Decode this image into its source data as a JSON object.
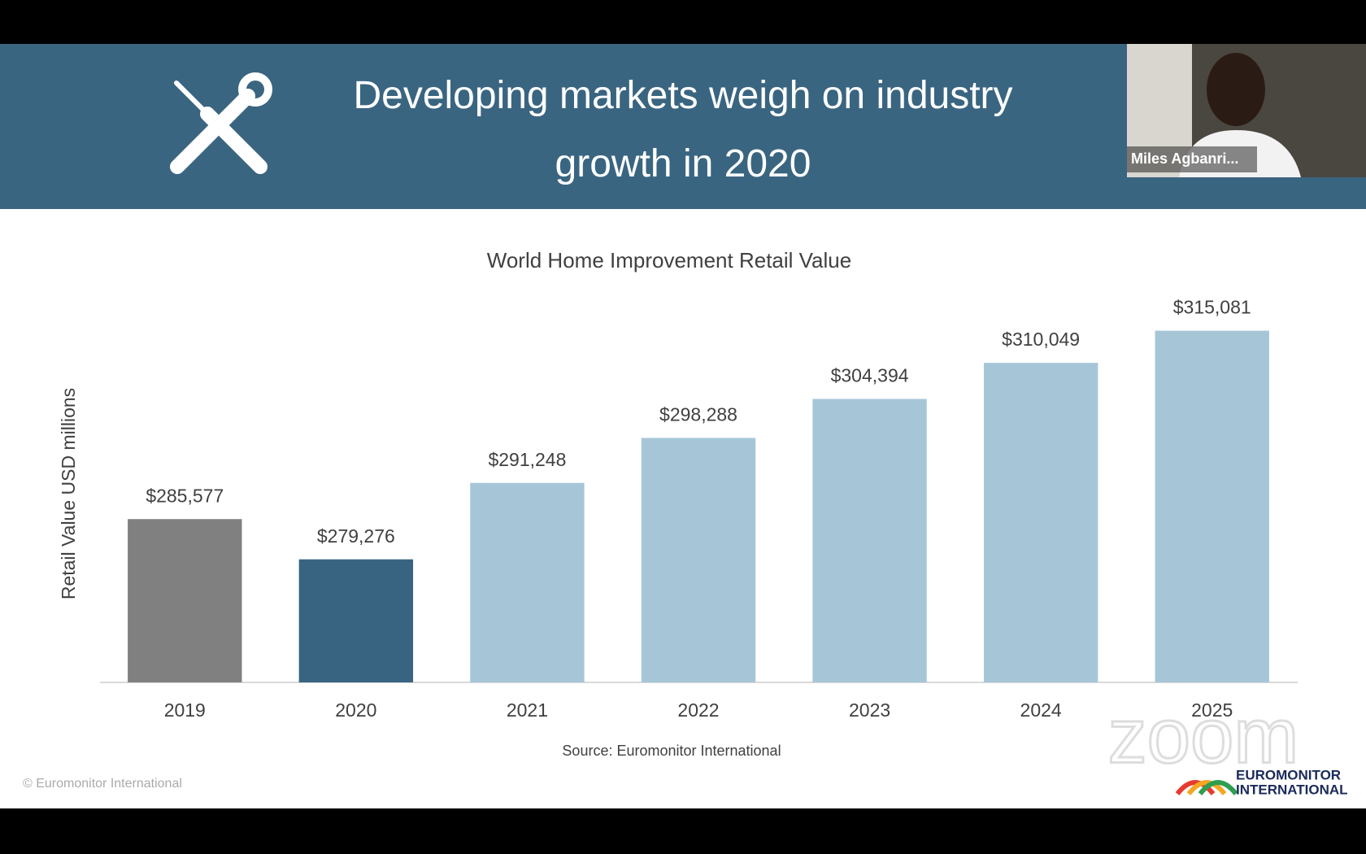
{
  "slide": {
    "title": "Developing markets weigh on industry growth in 2020",
    "copyright": "© Euromonitor International",
    "logo": [
      "EUROMONITOR",
      "INTERNATIONAL"
    ]
  },
  "video": {
    "participant": "Miles Agbanri..."
  },
  "watermark": "zoom",
  "chart_data": {
    "type": "bar",
    "title": "World Home Improvement Retail Value",
    "y_label": "Retail Value USD millions",
    "source": "Source: Euromonitor International",
    "categories": [
      "2019",
      "2020",
      "2021",
      "2022",
      "2023",
      "2024",
      "2025"
    ],
    "values": [
      285577,
      279276,
      291248,
      298288,
      304394,
      310049,
      315081
    ],
    "value_labels": [
      "$285,577",
      "$279,276",
      "$291,248",
      "$298,288",
      "$304,394",
      "$310,049",
      "$315,081"
    ],
    "colors": [
      "#808080",
      "#386482",
      "#a6c6d8",
      "#a6c6d8",
      "#a6c6d8",
      "#a6c6d8",
      "#a6c6d8"
    ],
    "ylim": [
      260000,
      320000
    ]
  }
}
